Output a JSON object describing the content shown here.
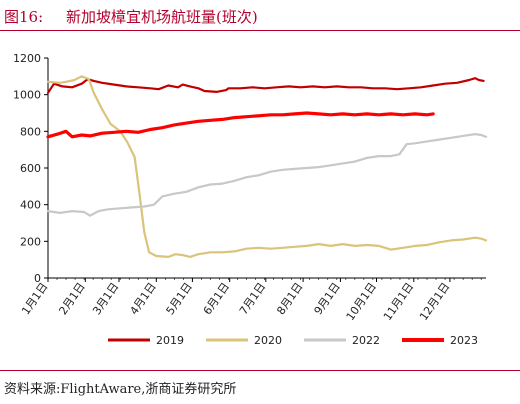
{
  "header": {
    "figure_label": "图16:",
    "title": "新加坡樟宜机场航班量(班次)"
  },
  "footer": {
    "source": "资料来源:FlightAware,浙商证券研究所"
  },
  "colors": {
    "title": "#b3002d",
    "s2019": "#c00000",
    "s2020": "#d9c47a",
    "s2022": "#c8c8c8",
    "s2023": "#ff0000"
  },
  "chart_data": {
    "type": "line",
    "title": "新加坡樟宜机场航班量(班次)",
    "xlabel": "",
    "ylabel": "",
    "ylim": [
      0,
      1200
    ],
    "yticks": [
      0,
      200,
      400,
      600,
      800,
      1000,
      1200
    ],
    "xticks": [
      "1月1日",
      "2月1日",
      "3月1日",
      "4月1日",
      "5月1日",
      "6月1日",
      "7月1日",
      "8月1日",
      "9月1日",
      "10月1日",
      "11月1日",
      "12月1日"
    ],
    "xtick_days": [
      0,
      31,
      59,
      90,
      120,
      151,
      181,
      212,
      243,
      273,
      304,
      334
    ],
    "x_day_range": [
      0,
      364
    ],
    "grid": false,
    "legend_position": "bottom",
    "series": [
      {
        "name": "2019",
        "color": "#c00000",
        "points": [
          [
            0,
            1010
          ],
          [
            5,
            1060
          ],
          [
            12,
            1045
          ],
          [
            20,
            1040
          ],
          [
            28,
            1060
          ],
          [
            33,
            1085
          ],
          [
            38,
            1075
          ],
          [
            45,
            1065
          ],
          [
            55,
            1055
          ],
          [
            65,
            1045
          ],
          [
            75,
            1040
          ],
          [
            85,
            1035
          ],
          [
            92,
            1030
          ],
          [
            100,
            1050
          ],
          [
            108,
            1040
          ],
          [
            112,
            1055
          ],
          [
            118,
            1045
          ],
          [
            125,
            1035
          ],
          [
            130,
            1020
          ],
          [
            140,
            1015
          ],
          [
            148,
            1025
          ],
          [
            150,
            1035
          ],
          [
            160,
            1035
          ],
          [
            170,
            1040
          ],
          [
            180,
            1035
          ],
          [
            190,
            1040
          ],
          [
            200,
            1045
          ],
          [
            210,
            1040
          ],
          [
            220,
            1045
          ],
          [
            230,
            1040
          ],
          [
            240,
            1045
          ],
          [
            250,
            1040
          ],
          [
            260,
            1040
          ],
          [
            270,
            1035
          ],
          [
            280,
            1035
          ],
          [
            290,
            1030
          ],
          [
            300,
            1035
          ],
          [
            310,
            1040
          ],
          [
            320,
            1050
          ],
          [
            330,
            1060
          ],
          [
            340,
            1065
          ],
          [
            350,
            1080
          ],
          [
            355,
            1090
          ],
          [
            358,
            1080
          ],
          [
            362,
            1075
          ]
        ]
      },
      {
        "name": "2020",
        "color": "#d9c47a",
        "points": [
          [
            0,
            1070
          ],
          [
            10,
            1065
          ],
          [
            15,
            1070
          ],
          [
            22,
            1080
          ],
          [
            28,
            1100
          ],
          [
            34,
            1085
          ],
          [
            38,
            1010
          ],
          [
            45,
            920
          ],
          [
            52,
            840
          ],
          [
            60,
            800
          ],
          [
            66,
            740
          ],
          [
            72,
            660
          ],
          [
            76,
            460
          ],
          [
            80,
            250
          ],
          [
            84,
            140
          ],
          [
            90,
            120
          ],
          [
            100,
            115
          ],
          [
            106,
            130
          ],
          [
            112,
            125
          ],
          [
            118,
            115
          ],
          [
            125,
            130
          ],
          [
            135,
            140
          ],
          [
            145,
            140
          ],
          [
            155,
            145
          ],
          [
            165,
            160
          ],
          [
            175,
            165
          ],
          [
            185,
            160
          ],
          [
            195,
            165
          ],
          [
            205,
            170
          ],
          [
            215,
            175
          ],
          [
            225,
            185
          ],
          [
            235,
            175
          ],
          [
            245,
            185
          ],
          [
            255,
            175
          ],
          [
            265,
            180
          ],
          [
            275,
            175
          ],
          [
            285,
            155
          ],
          [
            295,
            165
          ],
          [
            305,
            175
          ],
          [
            315,
            180
          ],
          [
            325,
            195
          ],
          [
            335,
            205
          ],
          [
            345,
            210
          ],
          [
            355,
            220
          ],
          [
            360,
            215
          ],
          [
            364,
            205
          ]
        ]
      },
      {
        "name": "2022",
        "color": "#c8c8c8",
        "points": [
          [
            0,
            365
          ],
          [
            10,
            355
          ],
          [
            20,
            365
          ],
          [
            30,
            360
          ],
          [
            35,
            340
          ],
          [
            42,
            365
          ],
          [
            50,
            375
          ],
          [
            60,
            380
          ],
          [
            70,
            385
          ],
          [
            80,
            390
          ],
          [
            88,
            400
          ],
          [
            95,
            445
          ],
          [
            105,
            460
          ],
          [
            115,
            470
          ],
          [
            125,
            495
          ],
          [
            135,
            510
          ],
          [
            145,
            515
          ],
          [
            155,
            530
          ],
          [
            165,
            550
          ],
          [
            175,
            560
          ],
          [
            185,
            580
          ],
          [
            195,
            590
          ],
          [
            205,
            595
          ],
          [
            215,
            600
          ],
          [
            225,
            605
          ],
          [
            235,
            615
          ],
          [
            245,
            625
          ],
          [
            255,
            635
          ],
          [
            265,
            655
          ],
          [
            275,
            665
          ],
          [
            285,
            665
          ],
          [
            292,
            675
          ],
          [
            298,
            730
          ],
          [
            305,
            735
          ],
          [
            315,
            745
          ],
          [
            325,
            755
          ],
          [
            335,
            765
          ],
          [
            345,
            775
          ],
          [
            355,
            785
          ],
          [
            360,
            780
          ],
          [
            364,
            770
          ]
        ]
      },
      {
        "name": "2023",
        "color": "#ff0000",
        "points": [
          [
            0,
            770
          ],
          [
            8,
            785
          ],
          [
            15,
            800
          ],
          [
            20,
            770
          ],
          [
            28,
            780
          ],
          [
            35,
            775
          ],
          [
            45,
            790
          ],
          [
            55,
            795
          ],
          [
            65,
            800
          ],
          [
            75,
            795
          ],
          [
            85,
            810
          ],
          [
            95,
            820
          ],
          [
            105,
            835
          ],
          [
            115,
            845
          ],
          [
            125,
            855
          ],
          [
            135,
            860
          ],
          [
            145,
            865
          ],
          [
            155,
            875
          ],
          [
            165,
            880
          ],
          [
            175,
            885
          ],
          [
            185,
            890
          ],
          [
            195,
            890
          ],
          [
            205,
            895
          ],
          [
            215,
            900
          ],
          [
            225,
            895
          ],
          [
            235,
            890
          ],
          [
            245,
            895
          ],
          [
            255,
            890
          ],
          [
            265,
            895
          ],
          [
            275,
            890
          ],
          [
            285,
            895
          ],
          [
            295,
            890
          ],
          [
            305,
            895
          ],
          [
            315,
            890
          ],
          [
            320,
            895
          ]
        ]
      }
    ]
  }
}
